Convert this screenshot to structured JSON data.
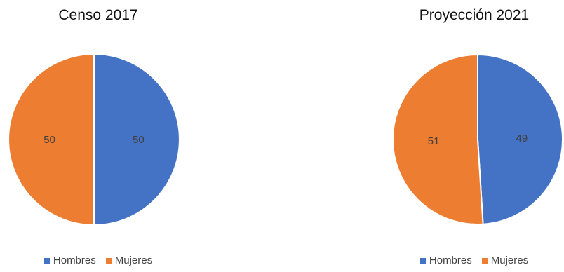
{
  "chart_data": [
    {
      "type": "pie",
      "title": "Censo 2017",
      "categories": [
        "Hombres",
        "Mujeres"
      ],
      "values": [
        50,
        50
      ],
      "data_labels": [
        "50",
        "50"
      ],
      "colors": [
        "#4472C4",
        "#ED7D31"
      ],
      "legend": "bottom"
    },
    {
      "type": "pie",
      "title": "Proyección 2021",
      "categories": [
        "Hombres",
        "Mujeres"
      ],
      "values": [
        49,
        51
      ],
      "data_labels": [
        "49",
        "51"
      ],
      "colors": [
        "#4472C4",
        "#ED7D31"
      ],
      "legend": "bottom"
    }
  ]
}
